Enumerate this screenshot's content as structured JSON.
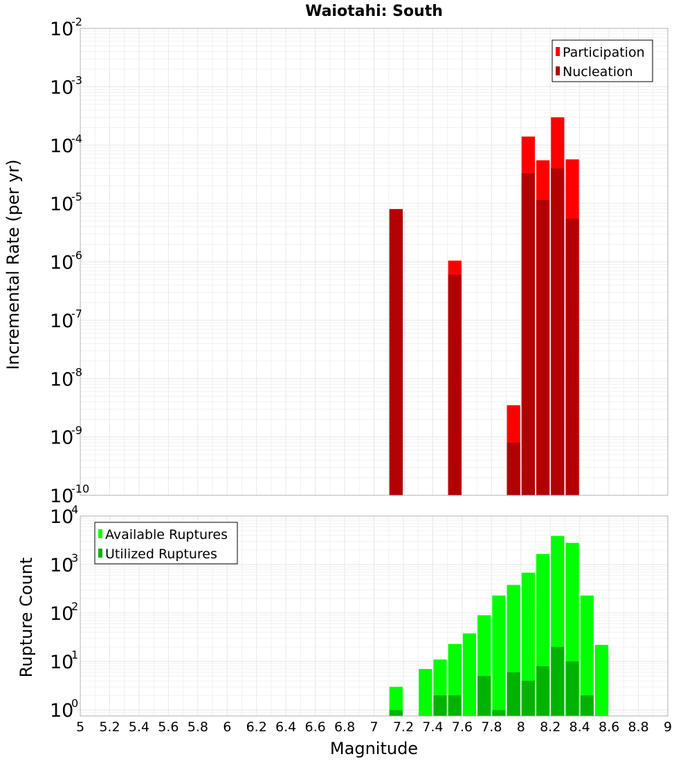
{
  "chart_data": [
    {
      "type": "bar",
      "title": "Waiotahi: South",
      "ylabel": "Incremental Rate (per yr)",
      "xlabel": "",
      "xlim": [
        5,
        9
      ],
      "ylim": [
        1e-10,
        0.01
      ],
      "yscale": "log",
      "grid": true,
      "legend_position": "top-right",
      "bar_width": 0.1,
      "ytick_labels": [
        {
          "base": "10",
          "exp": "-10"
        },
        {
          "base": "10",
          "exp": "-9"
        },
        {
          "base": "10",
          "exp": "-8"
        },
        {
          "base": "10",
          "exp": "-7"
        },
        {
          "base": "10",
          "exp": "-6"
        },
        {
          "base": "10",
          "exp": "-5"
        },
        {
          "base": "10",
          "exp": "-4"
        },
        {
          "base": "10",
          "exp": "-3"
        },
        {
          "base": "10",
          "exp": "-2"
        }
      ],
      "series": [
        {
          "name": "Participation",
          "color": "#ff0000",
          "points": [
            {
              "x": 7.15,
              "y": 8e-06
            },
            {
              "x": 7.55,
              "y": 1.05e-06
            },
            {
              "x": 7.95,
              "y": 3.5e-09
            },
            {
              "x": 8.05,
              "y": 0.00014
            },
            {
              "x": 8.15,
              "y": 5.5e-05
            },
            {
              "x": 8.25,
              "y": 0.0003
            },
            {
              "x": 8.35,
              "y": 5.7e-05
            }
          ]
        },
        {
          "name": "Nucleation",
          "color": "#b30000",
          "points": [
            {
              "x": 7.15,
              "y": 8e-06
            },
            {
              "x": 7.55,
              "y": 6e-07
            },
            {
              "x": 7.95,
              "y": 8e-10
            },
            {
              "x": 8.05,
              "y": 3.3e-05
            },
            {
              "x": 8.15,
              "y": 1.15e-05
            },
            {
              "x": 8.25,
              "y": 4e-05
            },
            {
              "x": 8.35,
              "y": 5.5e-06
            }
          ]
        }
      ]
    },
    {
      "type": "bar",
      "title": "",
      "ylabel": "Rupture Count",
      "xlabel": "Magnitude",
      "xlim": [
        5,
        9
      ],
      "ylim": [
        0.75,
        10000
      ],
      "yscale": "log",
      "grid": true,
      "legend_position": "top-left",
      "bar_width": 0.1,
      "ytick_labels": [
        {
          "base": "10",
          "exp": "0"
        },
        {
          "base": "10",
          "exp": "1"
        },
        {
          "base": "10",
          "exp": "2"
        },
        {
          "base": "10",
          "exp": "3"
        },
        {
          "base": "10",
          "exp": "4"
        }
      ],
      "categories": [
        "5",
        "5.2",
        "5.4",
        "5.6",
        "5.8",
        "6",
        "6.2",
        "6.4",
        "6.6",
        "6.8",
        "7",
        "7.2",
        "7.4",
        "7.6",
        "7.8",
        "8",
        "8.2",
        "8.4",
        "8.6",
        "8.8",
        "9"
      ],
      "series": [
        {
          "name": "Available Ruptures",
          "color": "#00ff00",
          "points": [
            {
              "x": 7.15,
              "y": 3
            },
            {
              "x": 7.35,
              "y": 7
            },
            {
              "x": 7.45,
              "y": 11
            },
            {
              "x": 7.55,
              "y": 23
            },
            {
              "x": 7.65,
              "y": 38
            },
            {
              "x": 7.75,
              "y": 90
            },
            {
              "x": 7.85,
              "y": 230
            },
            {
              "x": 7.95,
              "y": 380
            },
            {
              "x": 8.05,
              "y": 680
            },
            {
              "x": 8.15,
              "y": 1650
            },
            {
              "x": 8.25,
              "y": 3900
            },
            {
              "x": 8.35,
              "y": 2800
            },
            {
              "x": 8.45,
              "y": 230
            },
            {
              "x": 8.55,
              "y": 22
            }
          ]
        },
        {
          "name": "Utilized Ruptures",
          "color": "#00b300",
          "points": [
            {
              "x": 7.15,
              "y": 1
            },
            {
              "x": 7.45,
              "y": 2
            },
            {
              "x": 7.55,
              "y": 2
            },
            {
              "x": 7.75,
              "y": 5
            },
            {
              "x": 7.85,
              "y": 1
            },
            {
              "x": 7.95,
              "y": 6
            },
            {
              "x": 8.05,
              "y": 4
            },
            {
              "x": 8.15,
              "y": 8
            },
            {
              "x": 8.25,
              "y": 20
            },
            {
              "x": 8.35,
              "y": 10
            },
            {
              "x": 8.45,
              "y": 2
            }
          ]
        }
      ]
    }
  ]
}
